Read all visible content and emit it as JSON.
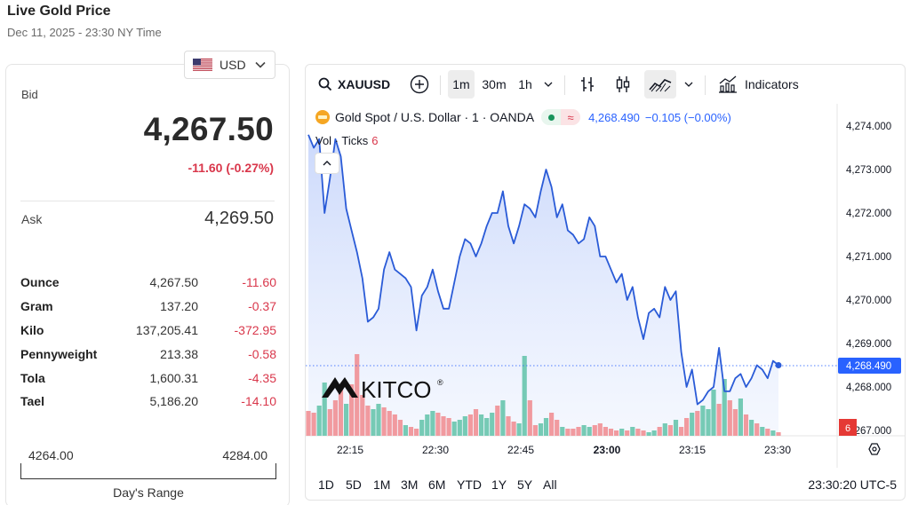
{
  "header": {
    "title": "Live Gold Price",
    "subtitle": "Dec 11, 2025 - 23:30 NY Time"
  },
  "currency": {
    "selected": "USD",
    "flag_icon": "us-flag-icon"
  },
  "price": {
    "bid_label": "Bid",
    "bid_value": "4,267.50",
    "bid_change": "-11.60 (-0.27%)",
    "ask_label": "Ask",
    "ask_value": "4,269.50"
  },
  "units": [
    {
      "unit": "Ounce",
      "value": "4,267.50",
      "change": "-11.60"
    },
    {
      "unit": "Gram",
      "value": "137.20",
      "change": "-0.37"
    },
    {
      "unit": "Kilo",
      "value": "137,205.41",
      "change": "-372.95"
    },
    {
      "unit": "Pennyweight",
      "value": "213.38",
      "change": "-0.58"
    },
    {
      "unit": "Tola",
      "value": "1,600.31",
      "change": "-4.35"
    },
    {
      "unit": "Tael",
      "value": "5,186.20",
      "change": "-14.10"
    }
  ],
  "days_range": {
    "low": "4264.00",
    "high": "4284.00",
    "label": "Day's Range"
  },
  "toolbar": {
    "symbol": "XAUUSD",
    "intervals": [
      "1m",
      "30m",
      "1h"
    ],
    "active_interval": "1m",
    "indicators_label": "Indicators"
  },
  "legend": {
    "title": "Gold Spot / U.S. Dollar · 1 · OANDA",
    "value": "4,268.490",
    "change": "−0.105 (−0.00%)",
    "vol_label": "Vol · Ticks",
    "vol_value": "6"
  },
  "watermark": "KITCO",
  "time_ranges": [
    "1D",
    "5D",
    "1M",
    "3M",
    "6M",
    "YTD",
    "1Y",
    "5Y",
    "All"
  ],
  "clock": "23:30:20 UTC-5",
  "colors": {
    "line": "#2a5bd7",
    "up": "#5fc2a8",
    "down": "#f08a8e",
    "change_red": "#d9374b",
    "last_price_bg": "#2962ff",
    "vol_badge": "#e53935"
  },
  "chart_data": {
    "type": "area",
    "x_label_times": [
      "22:15",
      "22:30",
      "22:45",
      "23:00",
      "23:15",
      "23:30"
    ],
    "y_ticks": [
      "4,274.000",
      "4,273.000",
      "4,272.000",
      "4,271.000",
      "4,270.000",
      "4,269.000",
      "4,268.000",
      "4,267.000"
    ],
    "ylim": [
      4267,
      4274
    ],
    "last_price_label": "4,268.490",
    "volume_badge": "6",
    "series": [
      {
        "name": "Gold Spot / U.S. Dollar",
        "values": [
          4273.8,
          4273.5,
          4273.7,
          4272.0,
          4272.8,
          4273.7,
          4273.3,
          4272.1,
          4271.6,
          4271.1,
          4270.5,
          4269.5,
          4269.6,
          4269.8,
          4270.7,
          4271.1,
          4270.7,
          4270.6,
          4270.5,
          4270.3,
          4269.3,
          4270.1,
          4270.3,
          4270.7,
          4270.2,
          4269.8,
          4269.8,
          4270.4,
          4271.0,
          4271.4,
          4271.3,
          4271.0,
          4271.3,
          4271.7,
          4272.0,
          4272.0,
          4272.5,
          4271.7,
          4271.3,
          4271.7,
          4272.2,
          4272.1,
          4271.9,
          4272.5,
          4273.0,
          4272.6,
          4271.9,
          4272.2,
          4271.6,
          4271.5,
          4271.3,
          4271.4,
          4271.9,
          4271.7,
          4271.0,
          4271.0,
          4270.7,
          4270.4,
          4270.6,
          4270.0,
          4270.3,
          4269.6,
          4269.1,
          4269.7,
          4269.8,
          4269.6,
          4270.3,
          4270.0,
          4270.2,
          4268.8,
          4268.0,
          4268.4,
          4267.6,
          4267.7,
          4267.9,
          4268.0,
          4268.9,
          4267.9,
          4267.9,
          4268.2,
          4268.3,
          4268.0,
          4268.2,
          4268.5,
          4268.4,
          4268.2,
          4268.6,
          4268.5
        ]
      }
    ]
  }
}
